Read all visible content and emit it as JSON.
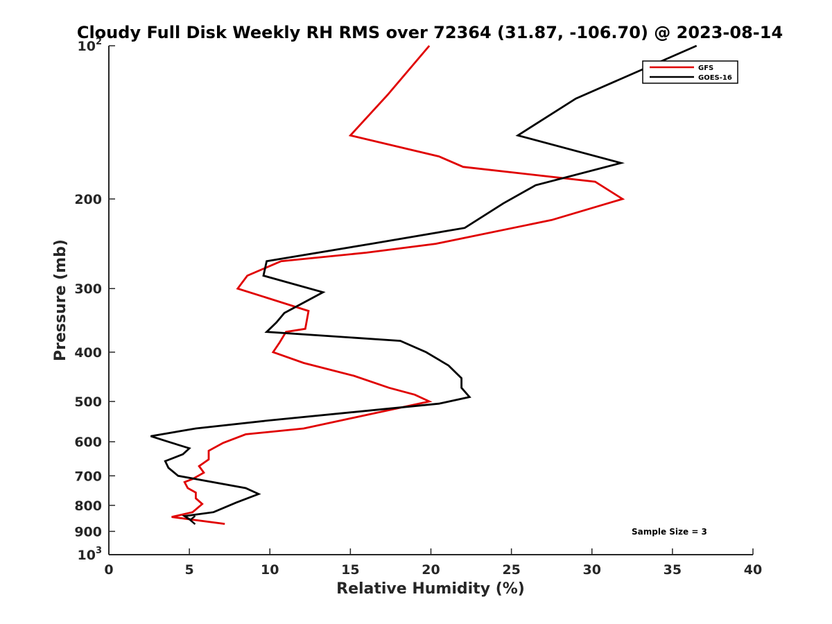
{
  "chart_data": {
    "type": "line",
    "title": "Cloudy Full Disk Weekly RH RMS over 72364 (31.87, -106.70) @ 2023-08-14",
    "xlabel": "Relative Humidity (%)",
    "ylabel": "Pressure (mb)",
    "xlim": [
      0,
      40
    ],
    "ylim": [
      100,
      1000
    ],
    "y_scale": "log",
    "y_reversed": true,
    "x_ticks": [
      "0",
      "5",
      "10",
      "15",
      "20",
      "25",
      "30",
      "35",
      "40"
    ],
    "y_ticks": [
      {
        "value": 100,
        "label": "10",
        "sup": "2"
      },
      {
        "value": 200,
        "label": "200",
        "sup": ""
      },
      {
        "value": 300,
        "label": "300",
        "sup": ""
      },
      {
        "value": 400,
        "label": "400",
        "sup": ""
      },
      {
        "value": 500,
        "label": "500",
        "sup": ""
      },
      {
        "value": 600,
        "label": "600",
        "sup": ""
      },
      {
        "value": 700,
        "label": "700",
        "sup": ""
      },
      {
        "value": 800,
        "label": "800",
        "sup": ""
      },
      {
        "value": 900,
        "label": "900",
        "sup": ""
      },
      {
        "value": 1000,
        "label": "10",
        "sup": "3"
      }
    ],
    "legend_position": "top-right",
    "annotation": "Sample Size = 3",
    "series": [
      {
        "name": "GFS",
        "color": "#e00000",
        "x": [
          19.9,
          17.3,
          15.0,
          20.5,
          22.0,
          30.2,
          31.9,
          27.5,
          20.3,
          16.0,
          10.7,
          8.6,
          8.0,
          12.4,
          12.2,
          11.0,
          10.6,
          10.2,
          12.1,
          15.2,
          17.4,
          19.0,
          19.9,
          17.4,
          14.4,
          12.1,
          8.5,
          7.1,
          6.2,
          6.2,
          5.6,
          5.9,
          5.2,
          4.7,
          4.9,
          5.4,
          5.4,
          5.8,
          5.2,
          3.9,
          7.2
        ],
        "y": [
          100,
          125,
          150,
          165,
          173,
          185,
          200,
          220,
          245,
          255,
          265,
          283,
          300,
          332,
          360,
          365,
          383,
          400,
          420,
          445,
          470,
          485,
          500,
          520,
          545,
          565,
          580,
          603,
          625,
          650,
          670,
          690,
          710,
          720,
          740,
          755,
          775,
          795,
          825,
          843,
          870
        ]
      },
      {
        "name": "GOES-16",
        "color": "#000000",
        "x": [
          36.5,
          29.0,
          25.4,
          31.8,
          26.5,
          24.5,
          22.1,
          16.3,
          9.8,
          9.6,
          13.3,
          10.9,
          10.4,
          9.8,
          18.1,
          19.7,
          21.1,
          21.9,
          21.9,
          22.4,
          20.5,
          9.9,
          5.4,
          2.6,
          3.7,
          5.0,
          4.6,
          3.5,
          3.7,
          4.3,
          8.5,
          9.3,
          7.9,
          6.5,
          4.7,
          5.1,
          4.8
        ],
        "y": [
          100,
          127,
          150,
          170,
          188,
          204,
          228,
          245,
          265,
          283,
          305,
          335,
          350,
          365,
          380,
          400,
          425,
          450,
          470,
          490,
          505,
          545,
          565,
          585,
          600,
          618,
          635,
          655,
          675,
          700,
          740,
          760,
          790,
          825,
          840,
          855,
          845
        ]
      }
    ]
  }
}
